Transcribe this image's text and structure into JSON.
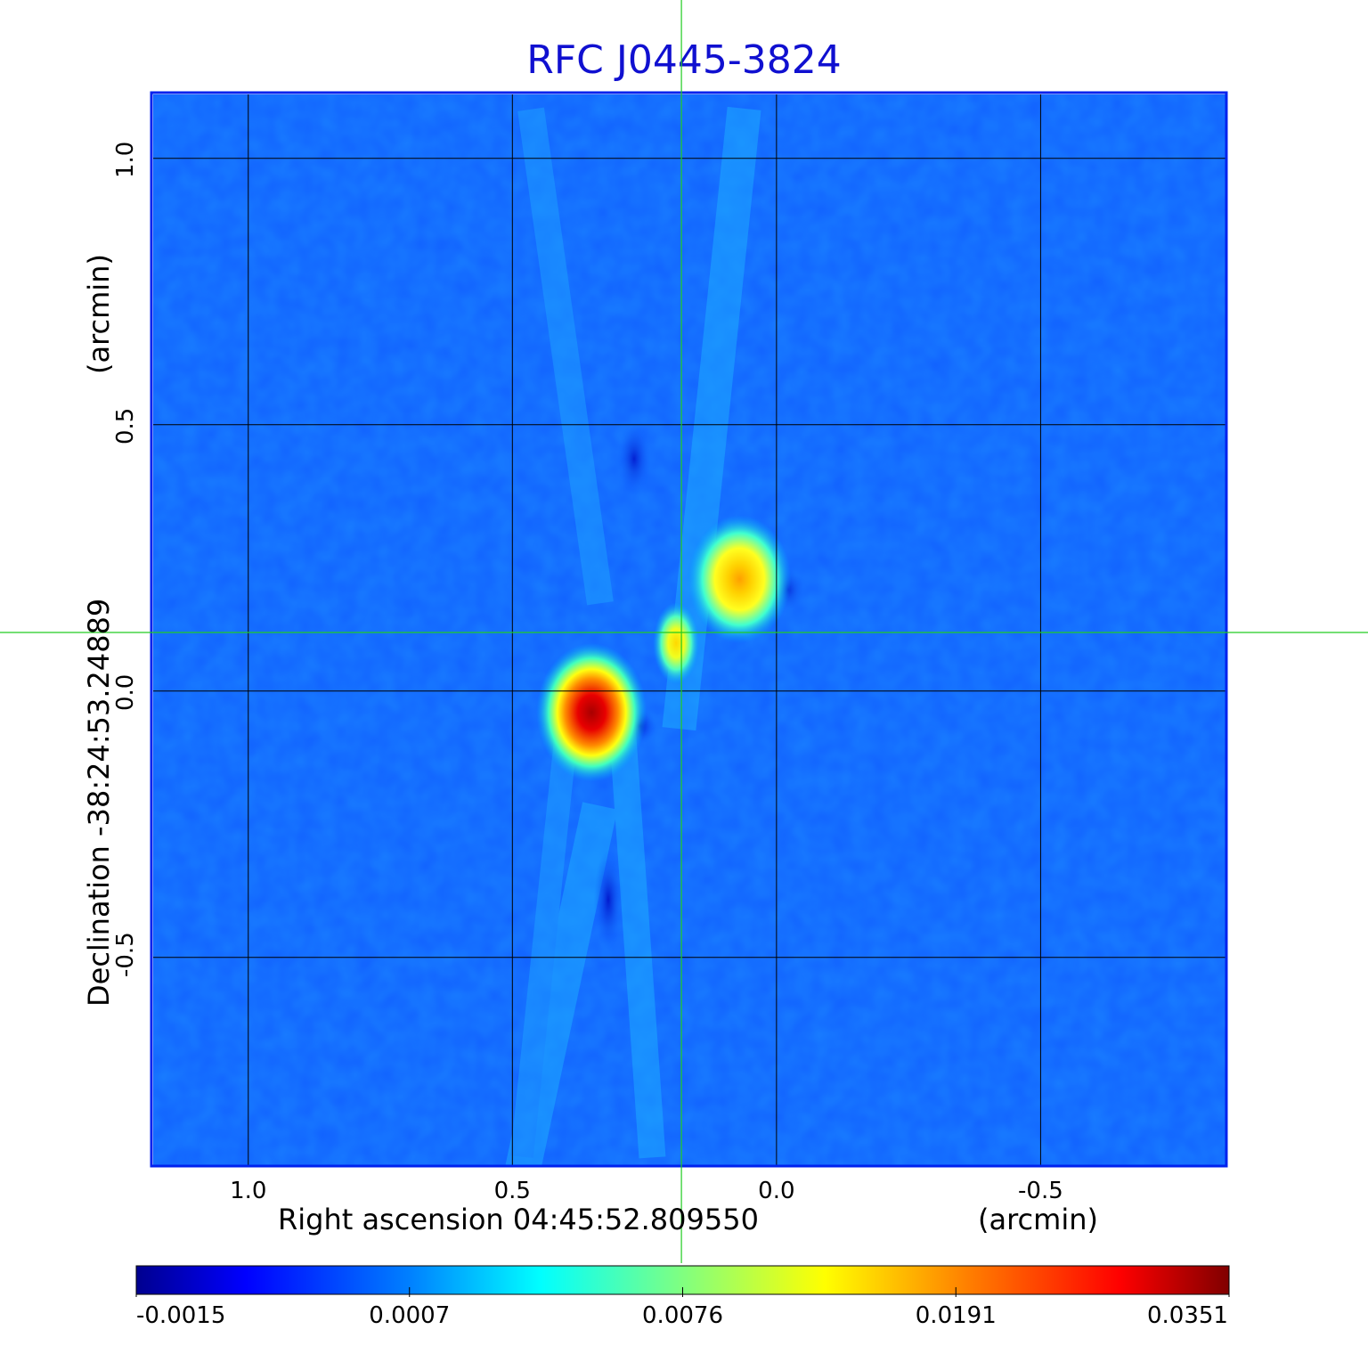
{
  "chart_data": {
    "type": "heatmap",
    "title": "RFC J0445-3824",
    "xlabel": "Right ascension  04:45:52.809550",
    "xunit": "(arcmin)",
    "ylabel": "Declination  -38:24:53.24889",
    "yunit": "(arcmin)",
    "x_ticks": [
      "1.0",
      "0.5",
      "0.0",
      "-0.5"
    ],
    "y_ticks": [
      "1.0",
      "0.5",
      "0.0",
      "-0.5"
    ],
    "xlim": [
      1.18,
      -0.85
    ],
    "ylim": [
      -0.89,
      1.12
    ],
    "grid": true,
    "colormap": "jet",
    "colorbar_ticks": [
      "-0.0015",
      "0.0007",
      "0.0076",
      "0.0191",
      "0.0351"
    ],
    "crosshair": {
      "x": 0.18,
      "y": 0.11
    },
    "sources": [
      {
        "x": 0.35,
        "y": -0.04,
        "peak": 0.0351
      },
      {
        "x": 0.07,
        "y": 0.21,
        "peak": 0.0191
      },
      {
        "x": 0.19,
        "y": 0.09,
        "peak": 0.0135
      }
    ]
  },
  "colors": {
    "title": "#1010d0",
    "frame": "#0022ee",
    "crosshair": "#22cc22",
    "grid": "#000000"
  }
}
